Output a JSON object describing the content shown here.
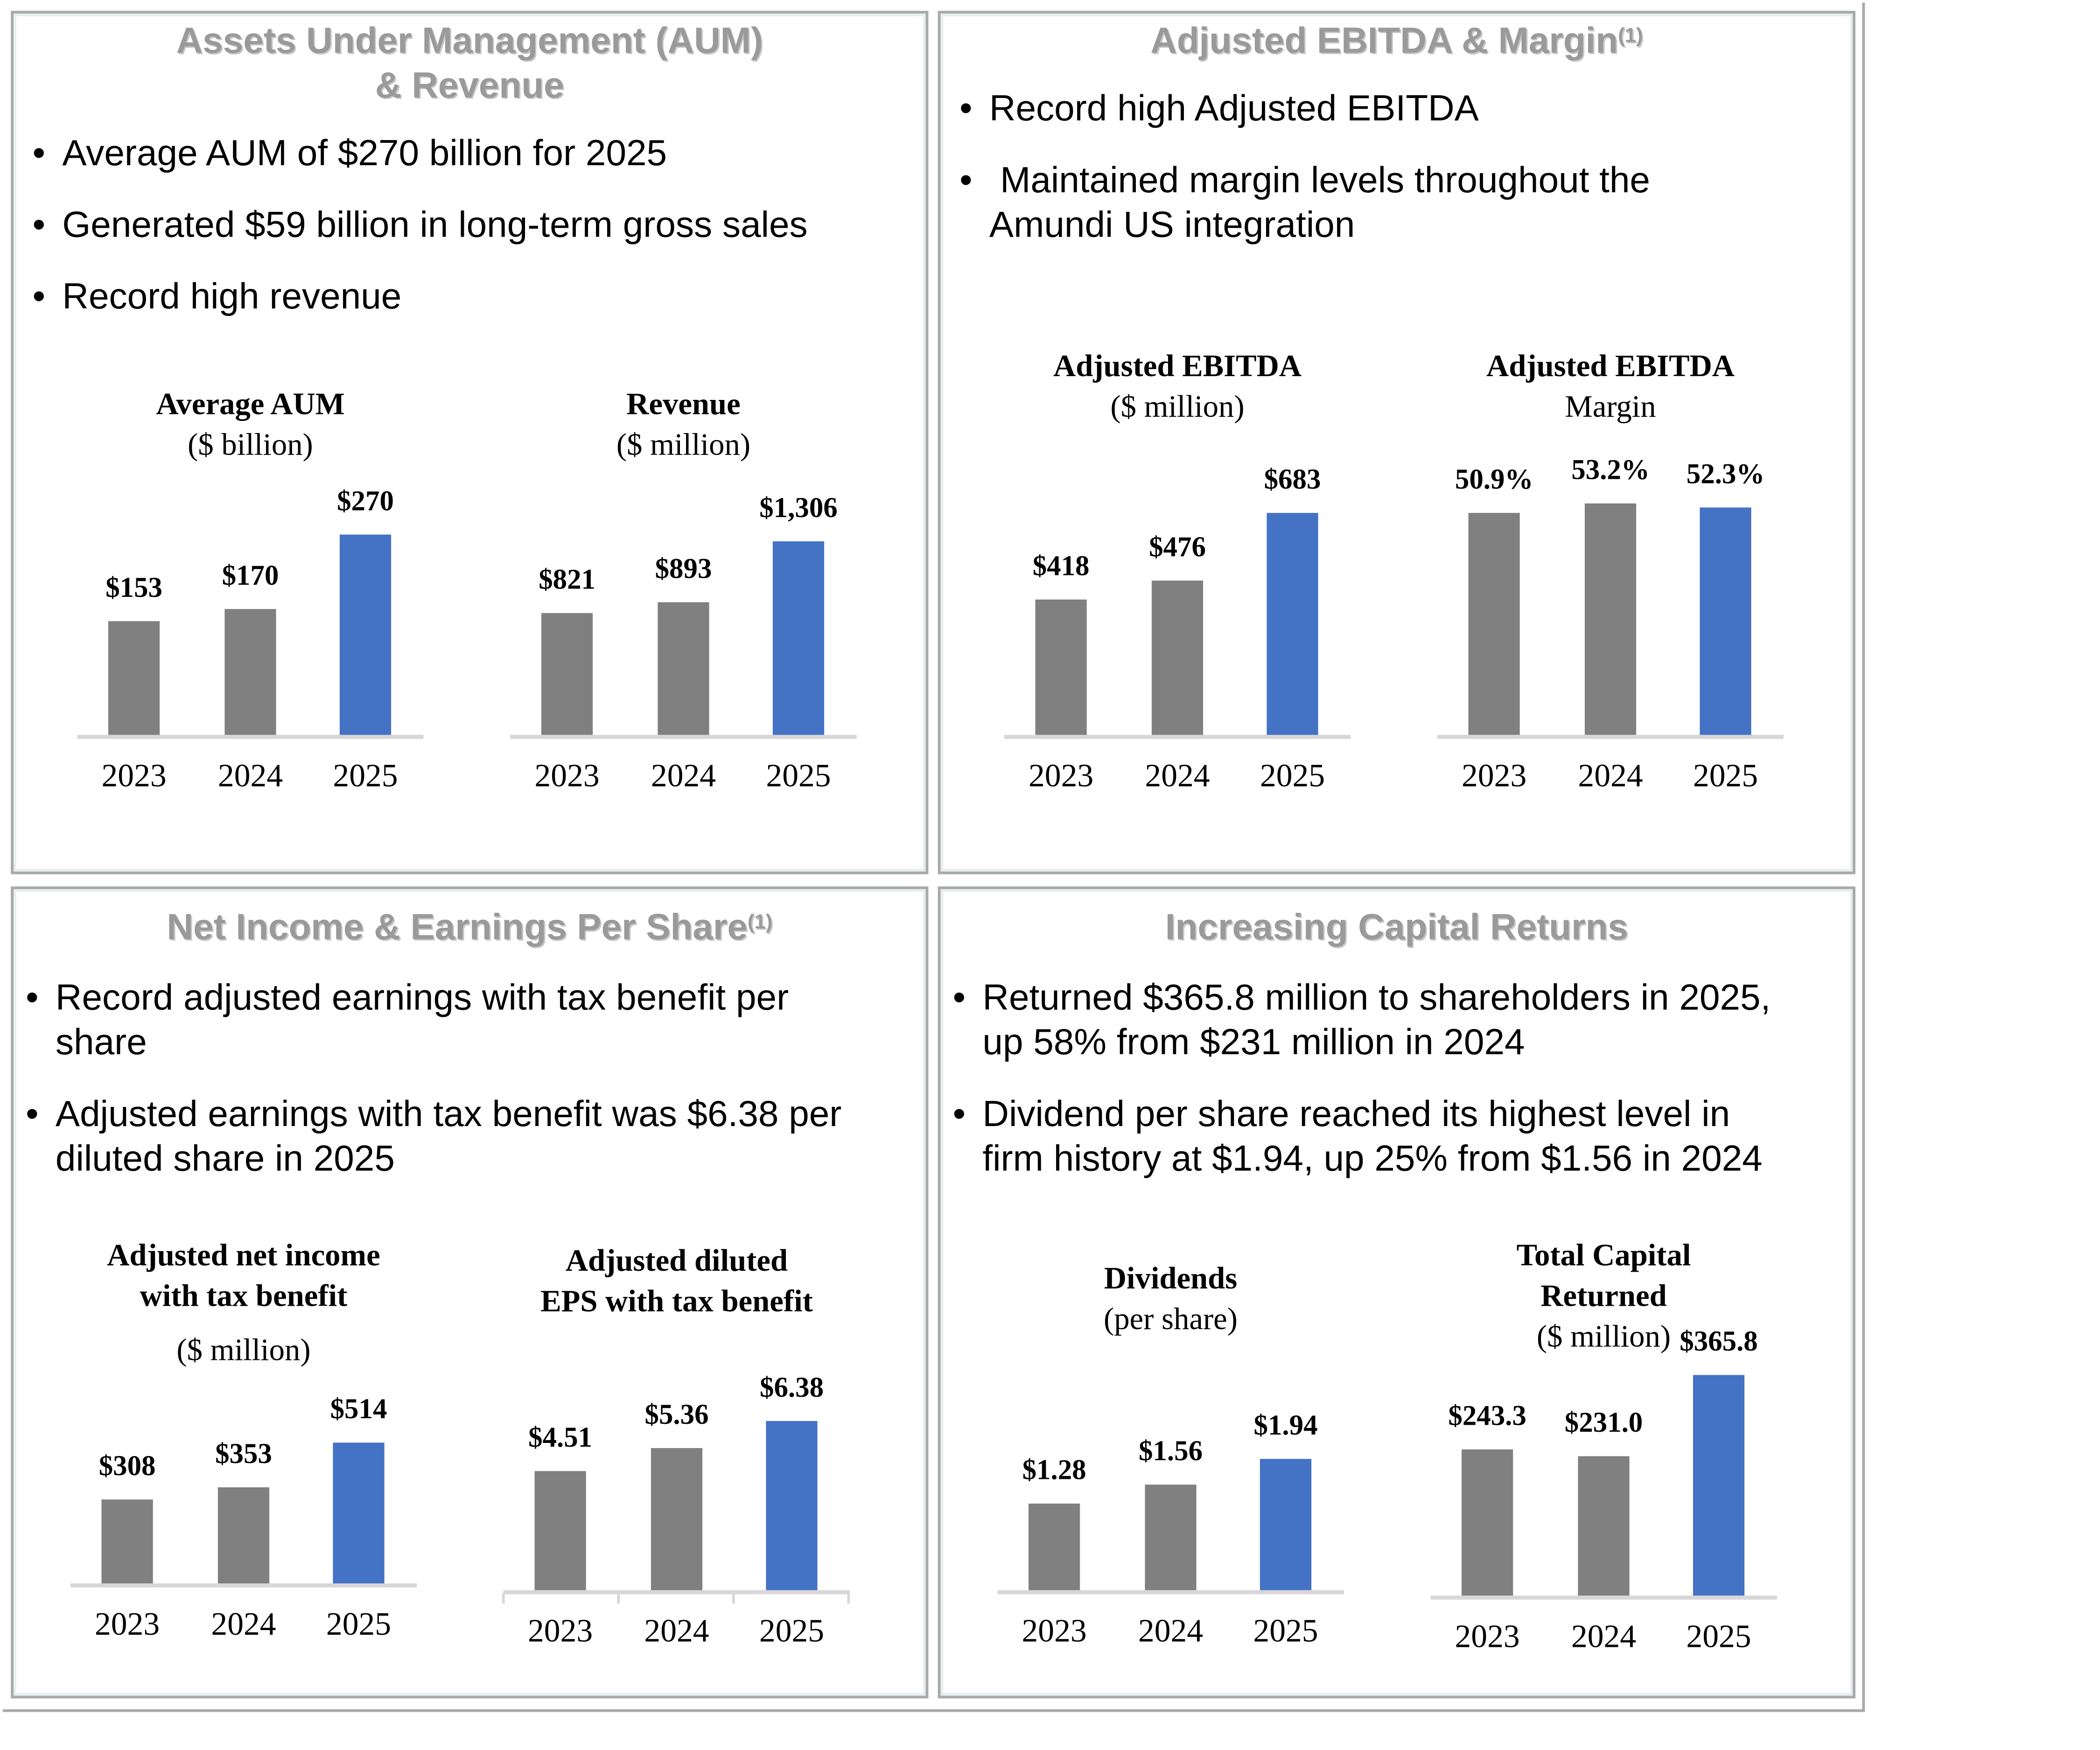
{
  "panels": [
    {
      "title_line1": "Assets Under Management (AUM)",
      "title_line2": "& Revenue",
      "bullets": [
        "Average AUM of $270 billion for 2025",
        "Generated $59 billion in long-term gross sales",
        "Record high revenue"
      ]
    },
    {
      "title": "Adjusted EBITDA & Margin",
      "title_sup": "(1)",
      "bullets": [
        "Record high Adjusted EBITDA",
        "Maintained margin levels throughout the",
        "Amundi US integration"
      ]
    },
    {
      "title": "Net Income & Earnings Per Share",
      "title_sup": "(1)",
      "bullets": [
        "Record adjusted earnings with tax benefit per",
        "share",
        "Adjusted earnings with tax benefit was $6.38 per",
        "diluted share in 2025"
      ]
    },
    {
      "title": "Increasing Capital Returns",
      "bullets": [
        "Returned $365.8 million to shareholders in 2025,",
        "up 58% from $231 million in 2024",
        "Dividend per share reached its highest level in",
        "firm history at $1.94, up 25% from $1.56 in 2024"
      ]
    }
  ],
  "bullet_char": "•",
  "colors": {
    "prior": "#808080",
    "current": "#4472c4",
    "heading": "#9a9a9a"
  },
  "chart_data": [
    {
      "type": "bar",
      "title": "Average AUM",
      "subtitle": "($ billion)",
      "categories": [
        "2023",
        "2024",
        "2025"
      ],
      "values": [
        153,
        170,
        270
      ],
      "labels": [
        "$153",
        "$170",
        "$270"
      ]
    },
    {
      "type": "bar",
      "title": "Revenue",
      "subtitle": "($ million)",
      "categories": [
        "2023",
        "2024",
        "2025"
      ],
      "values": [
        821,
        893,
        1306
      ],
      "labels": [
        "$821",
        "$893",
        "$1,306"
      ]
    },
    {
      "type": "bar",
      "title": "Adjusted EBITDA",
      "subtitle": "($ million)",
      "categories": [
        "2023",
        "2024",
        "2025"
      ],
      "values": [
        418,
        476,
        683
      ],
      "labels": [
        "$418",
        "$476",
        "$683"
      ]
    },
    {
      "type": "bar",
      "title": "Adjusted EBITDA",
      "subtitle": "Margin",
      "categories": [
        "2023",
        "2024",
        "2025"
      ],
      "values": [
        50.9,
        53.2,
        52.3
      ],
      "labels": [
        "50.9%",
        "53.2%",
        "52.3%"
      ]
    },
    {
      "type": "bar",
      "title": "Adjusted net income",
      "title2": "with tax benefit",
      "subtitle": "($ million)",
      "categories": [
        "2023",
        "2024",
        "2025"
      ],
      "values": [
        308,
        353,
        514
      ],
      "labels": [
        "$308",
        "$353",
        "$514"
      ]
    },
    {
      "type": "bar",
      "title": "Adjusted diluted",
      "title2": "EPS with tax benefit",
      "categories": [
        "2023",
        "2024",
        "2025"
      ],
      "values": [
        4.51,
        5.36,
        6.38
      ],
      "labels": [
        "$4.51",
        "$5.36",
        "$6.38"
      ]
    },
    {
      "type": "bar",
      "title": "Dividends",
      "subtitle": "(per share)",
      "categories": [
        "2023",
        "2024",
        "2025"
      ],
      "values": [
        1.28,
        1.56,
        1.94
      ],
      "labels": [
        "$1.28",
        "$1.56",
        "$1.94"
      ]
    },
    {
      "type": "bar",
      "title": "Total Capital",
      "title2": "Returned",
      "subtitle": "($ million)",
      "categories": [
        "2023",
        "2024",
        "2025"
      ],
      "values": [
        243.3,
        231.0,
        365.8
      ],
      "labels": [
        "$243.3",
        "$231.0",
        "$365.8"
      ]
    }
  ]
}
